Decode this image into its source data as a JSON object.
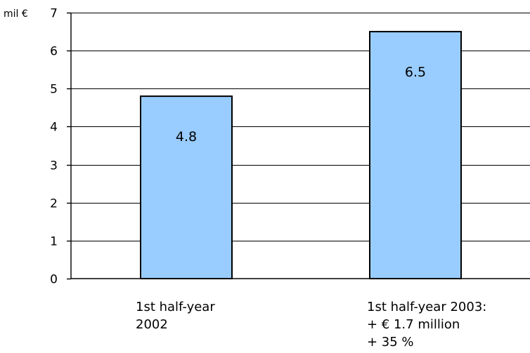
{
  "chart_data": {
    "type": "bar",
    "categories": [
      [
        "1st half-year",
        "2002"
      ],
      [
        "1st half-year 2003:",
        "+ € 1.7 million",
        "+ 35 %"
      ]
    ],
    "values": [
      4.8,
      6.5
    ],
    "data_labels": [
      "4.8",
      "6.5"
    ],
    "y_unit_label": "mil €",
    "ylim": [
      0,
      7
    ],
    "yticks": [
      0,
      1,
      2,
      3,
      4,
      5,
      6,
      7
    ],
    "grid": true,
    "colors": {
      "bar_fill": "#99ccff",
      "bar_stroke": "#000000",
      "grid": "#000000"
    }
  }
}
